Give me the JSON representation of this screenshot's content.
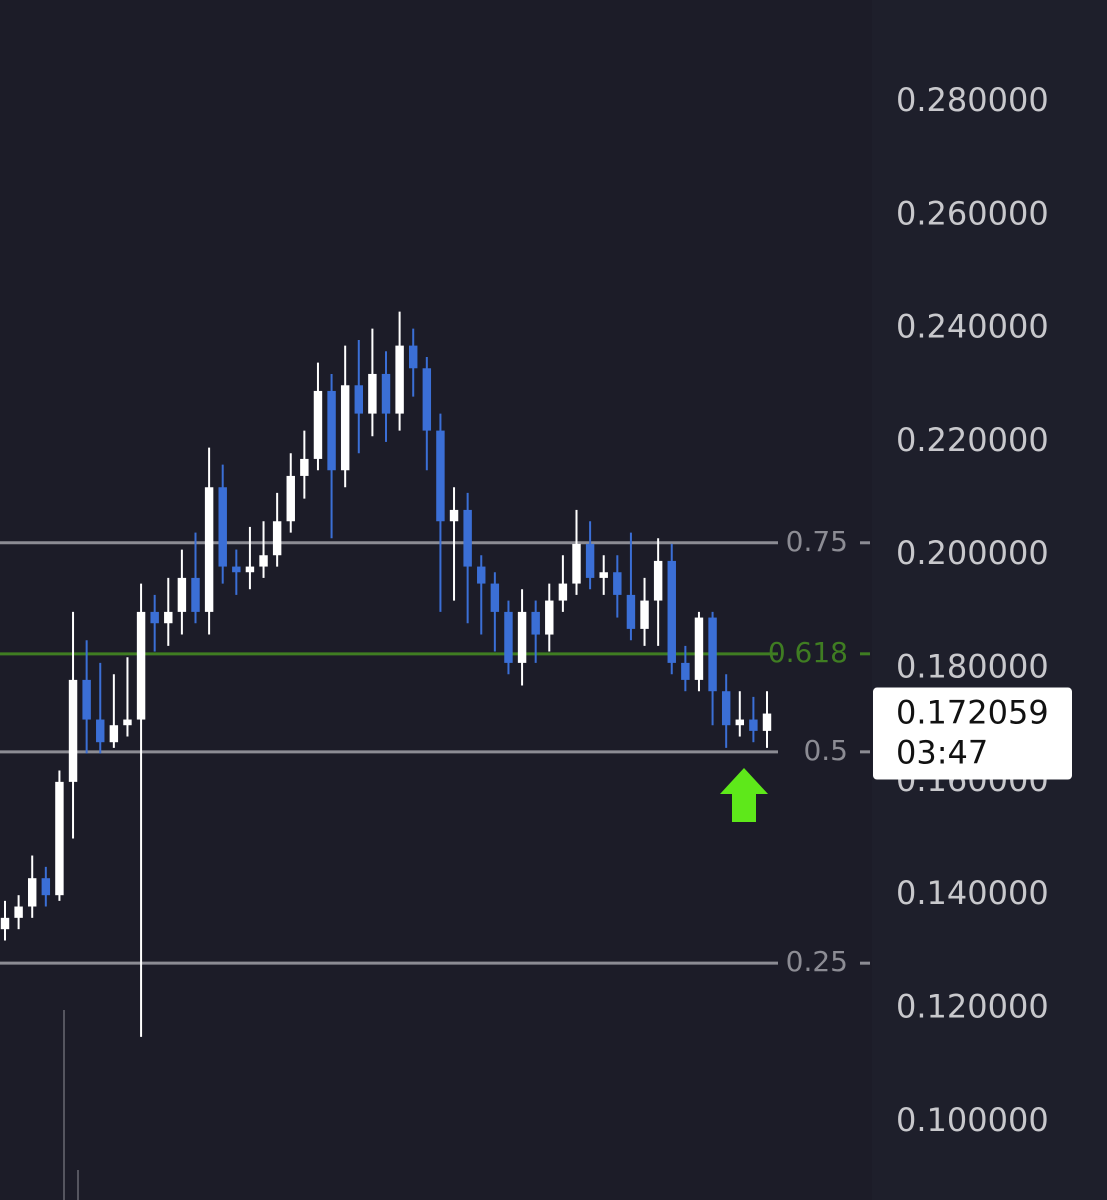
{
  "chart_data": {
    "type": "candlestick",
    "open": [
      0.134,
      0.136,
      0.138,
      0.143,
      0.14,
      0.16,
      0.178,
      0.171,
      0.167,
      0.17,
      0.171,
      0.19,
      0.188,
      0.19,
      0.196,
      0.19,
      0.212,
      0.198,
      0.197,
      0.198,
      0.2,
      0.206,
      0.214,
      0.217,
      0.229,
      0.215,
      0.23,
      0.225,
      0.232,
      0.225,
      0.237,
      0.233,
      0.222,
      0.206,
      0.208,
      0.198,
      0.195,
      0.19,
      0.181,
      0.19,
      0.186,
      0.192,
      0.195,
      0.202,
      0.196,
      0.197,
      0.193,
      0.187,
      0.192,
      0.199,
      0.181,
      0.178,
      0.189,
      0.176,
      0.17,
      0.171,
      0.169
    ],
    "high": [
      0.139,
      0.14,
      0.147,
      0.145,
      0.162,
      0.19,
      0.185,
      0.181,
      0.179,
      0.182,
      0.195,
      0.193,
      0.196,
      0.201,
      0.204,
      0.219,
      0.216,
      0.201,
      0.205,
      0.206,
      0.211,
      0.218,
      0.222,
      0.234,
      0.232,
      0.237,
      0.238,
      0.24,
      0.236,
      0.243,
      0.24,
      0.235,
      0.225,
      0.212,
      0.211,
      0.2,
      0.197,
      0.192,
      0.194,
      0.192,
      0.195,
      0.2,
      0.208,
      0.206,
      0.2,
      0.2,
      0.204,
      0.196,
      0.203,
      0.202,
      0.184,
      0.19,
      0.19,
      0.179,
      0.176,
      0.175,
      0.176
    ],
    "low": [
      0.132,
      0.134,
      0.136,
      0.138,
      0.139,
      0.15,
      0.165,
      0.165,
      0.166,
      0.168,
      0.115,
      0.183,
      0.184,
      0.186,
      0.188,
      0.186,
      0.195,
      0.193,
      0.194,
      0.196,
      0.198,
      0.204,
      0.21,
      0.215,
      0.203,
      0.212,
      0.218,
      0.221,
      0.22,
      0.222,
      0.228,
      0.215,
      0.19,
      0.192,
      0.188,
      0.186,
      0.183,
      0.179,
      0.177,
      0.181,
      0.183,
      0.19,
      0.193,
      0.194,
      0.193,
      0.189,
      0.185,
      0.184,
      0.184,
      0.179,
      0.176,
      0.176,
      0.17,
      0.166,
      0.168,
      0.167,
      0.166
    ],
    "close": [
      0.136,
      0.138,
      0.143,
      0.14,
      0.16,
      0.178,
      0.171,
      0.167,
      0.17,
      0.171,
      0.19,
      0.188,
      0.19,
      0.196,
      0.19,
      0.212,
      0.198,
      0.197,
      0.198,
      0.2,
      0.206,
      0.214,
      0.217,
      0.229,
      0.215,
      0.23,
      0.225,
      0.232,
      0.225,
      0.237,
      0.233,
      0.222,
      0.206,
      0.208,
      0.198,
      0.195,
      0.19,
      0.181,
      0.19,
      0.186,
      0.192,
      0.195,
      0.202,
      0.196,
      0.197,
      0.193,
      0.187,
      0.192,
      0.199,
      0.181,
      0.178,
      0.189,
      0.176,
      0.17,
      0.171,
      0.169,
      0.172059
    ],
    "up_color": "#ffffff",
    "down_color": "#3b6fd6",
    "ylim": [
      0.0862,
      0.298
    ],
    "yticks": [
      {
        "value": 0.1,
        "label": "0.100000"
      },
      {
        "value": 0.12,
        "label": "0.120000"
      },
      {
        "value": 0.14,
        "label": "0.140000"
      },
      {
        "value": 0.16,
        "label": "0.160000"
      },
      {
        "value": 0.18,
        "label": "0.180000"
      },
      {
        "value": 0.2,
        "label": "0.200000"
      },
      {
        "value": 0.22,
        "label": "0.220000"
      },
      {
        "value": 0.24,
        "label": "0.240000"
      },
      {
        "value": 0.26,
        "label": "0.260000"
      },
      {
        "value": 0.28,
        "label": "0.280000"
      }
    ],
    "levels": [
      {
        "level": 0.75,
        "price": 0.2022,
        "color": "#8c8c94"
      },
      {
        "level": 0.618,
        "price": 0.1826,
        "color": "#3f7d22"
      },
      {
        "level": 0.5,
        "price": 0.1653,
        "color": "#8c8c94"
      },
      {
        "level": 0.25,
        "price": 0.128,
        "color": "#8c8c94"
      }
    ],
    "last_price": 0.172059,
    "countdown": "03:47"
  }
}
